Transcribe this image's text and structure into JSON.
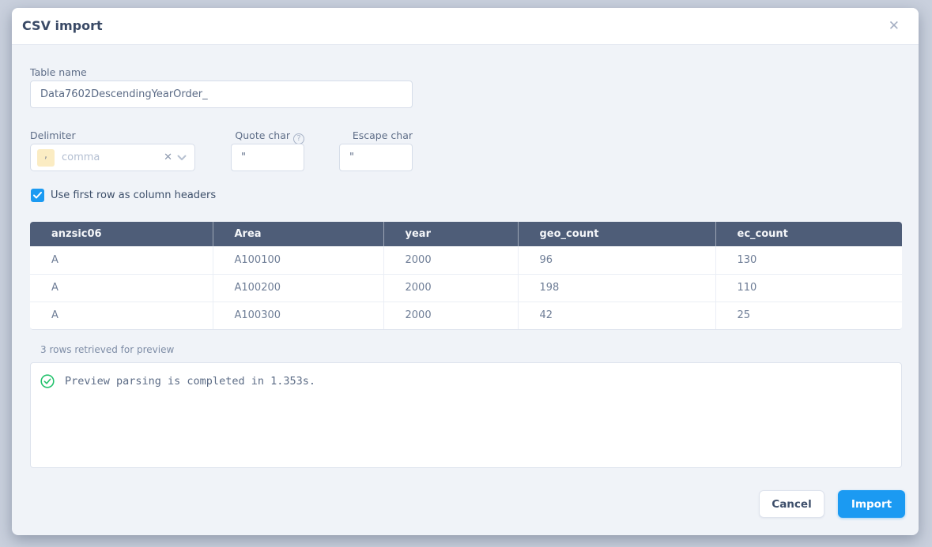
{
  "dialog": {
    "title": "CSV import"
  },
  "icons": {
    "close": "✕",
    "clear": "✕",
    "question": "?"
  },
  "form": {
    "table_name": {
      "label": "Table name",
      "value": "Data7602DescendingYearOrder_"
    },
    "delimiter": {
      "label": "Delimiter",
      "chip": ",",
      "selected_option": "comma"
    },
    "quote_char": {
      "label": "Quote char",
      "value": "\""
    },
    "escape_char": {
      "label": "Escape char",
      "value": "\""
    },
    "header_checkbox": {
      "label": "Use first row as column headers",
      "checked": true
    }
  },
  "preview_table": {
    "columns": [
      "anzsic06",
      "Area",
      "year",
      "geo_count",
      "ec_count"
    ],
    "rows": [
      [
        "A",
        "A100100",
        "2000",
        "96",
        "130"
      ],
      [
        "A",
        "A100200",
        "2000",
        "198",
        "110"
      ],
      [
        "A",
        "A100300",
        "2000",
        "42",
        "25"
      ]
    ],
    "footer_note": "3 rows retrieved for preview"
  },
  "log": {
    "status": "success",
    "message": "Preview parsing is completed in 1.353s."
  },
  "footer": {
    "cancel_label": "Cancel",
    "import_label": "Import"
  },
  "colors": {
    "accent_blue": "#1b9af2",
    "table_header_bg": "#4e5d78",
    "success_green": "#24c26d",
    "delimiter_chip_bg": "#fbecc3",
    "backdrop": "#c9d0dd"
  }
}
